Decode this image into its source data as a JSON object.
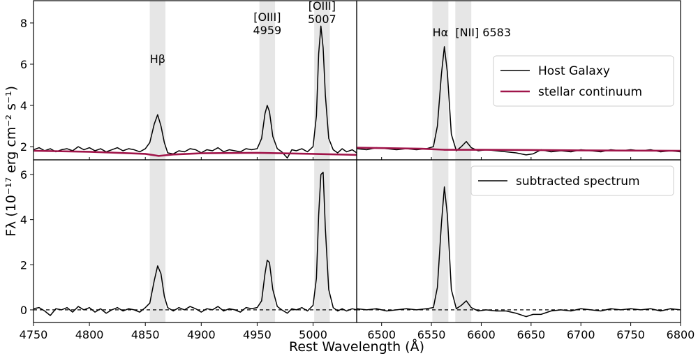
{
  "figure": {
    "xlabel": "Rest Wavelength (Å)",
    "ylabel": "Fλ (10⁻¹⁷ erg cm⁻² s⁻¹)"
  },
  "chart_data": [
    {
      "type": "line",
      "xlim": [
        4750,
        5039
      ],
      "ylim": [
        1.36,
        9.08
      ],
      "yticks": [
        2,
        4,
        6,
        8
      ],
      "bands": [
        {
          "range": [
            4854,
            4868
          ],
          "label": [
            "Hβ"
          ]
        },
        {
          "range": [
            4952,
            4966
          ],
          "label": [
            "[OIII]",
            "4959"
          ]
        },
        {
          "range": [
            5001,
            5015
          ],
          "label": [
            "[OIII]",
            "5007"
          ]
        }
      ],
      "series": [
        {
          "color": "#000000",
          "x": [
            4750,
            4755,
            4760,
            4765,
            4770,
            4775,
            4780,
            4785,
            4790,
            4795,
            4800,
            4805,
            4810,
            4815,
            4820,
            4825,
            4830,
            4835,
            4840,
            4845,
            4850,
            4854,
            4858,
            4861,
            4864,
            4867,
            4870,
            4875,
            4880,
            4885,
            4890,
            4895,
            4900,
            4905,
            4910,
            4915,
            4920,
            4925,
            4930,
            4935,
            4940,
            4945,
            4950,
            4954,
            4957,
            4959,
            4961,
            4964,
            4968,
            4972,
            4977,
            4981,
            4985,
            4990,
            4995,
            5000,
            5003,
            5005,
            5007,
            5009,
            5011,
            5014,
            5018,
            5022,
            5026,
            5030,
            5035,
            5039
          ],
          "values": [
            1.85,
            1.95,
            1.8,
            1.9,
            1.75,
            1.85,
            1.9,
            1.8,
            2.0,
            1.85,
            1.95,
            1.8,
            1.9,
            1.75,
            1.85,
            1.95,
            1.8,
            1.9,
            1.85,
            1.75,
            1.9,
            2.2,
            3.1,
            3.55,
            3.0,
            2.2,
            1.7,
            1.65,
            1.8,
            1.75,
            1.9,
            1.85,
            1.7,
            1.85,
            1.8,
            1.95,
            1.75,
            1.85,
            1.8,
            1.75,
            1.9,
            1.85,
            1.9,
            2.4,
            3.6,
            4.0,
            3.7,
            2.5,
            1.9,
            1.75,
            1.45,
            1.85,
            1.8,
            1.9,
            1.75,
            2.0,
            3.5,
            6.5,
            7.85,
            6.8,
            4.5,
            2.4,
            1.85,
            1.7,
            1.9,
            1.75,
            1.85,
            1.7
          ]
        },
        {
          "color": "#a0154a",
          "x": [
            4750,
            4800,
            4850,
            4862,
            4875,
            4900,
            4950,
            5000,
            5039
          ],
          "values": [
            1.8,
            1.75,
            1.65,
            1.55,
            1.62,
            1.68,
            1.7,
            1.65,
            1.6
          ]
        }
      ]
    },
    {
      "type": "line",
      "xlim": [
        6475,
        6800
      ],
      "ylim": [
        1.36,
        9.08
      ],
      "legend": "upper right",
      "bands": [
        {
          "range": [
            6551,
            6567
          ],
          "label": [
            "Hα"
          ]
        },
        {
          "range": [
            6574,
            6590
          ],
          "label": [
            "[NII] 6583"
          ]
        }
      ],
      "series": [
        {
          "name": "Host Galaxy",
          "color": "#000000",
          "x": [
            6475,
            6485,
            6495,
            6505,
            6515,
            6525,
            6535,
            6545,
            6552,
            6556,
            6560,
            6563,
            6566,
            6570,
            6575,
            6580,
            6585,
            6590,
            6597,
            6605,
            6615,
            6625,
            6635,
            6645,
            6652,
            6660,
            6670,
            6680,
            6690,
            6700,
            6710,
            6720,
            6730,
            6740,
            6750,
            6760,
            6770,
            6780,
            6790,
            6800
          ],
          "values": [
            1.9,
            1.85,
            1.95,
            1.9,
            1.85,
            1.9,
            1.85,
            1.9,
            2.0,
            3.0,
            5.5,
            6.85,
            5.6,
            2.6,
            1.8,
            2.0,
            2.25,
            1.95,
            1.8,
            1.85,
            1.8,
            1.75,
            1.7,
            1.6,
            1.65,
            1.85,
            1.75,
            1.8,
            1.75,
            1.85,
            1.8,
            1.75,
            1.85,
            1.8,
            1.85,
            1.8,
            1.85,
            1.75,
            1.8,
            1.75
          ]
        },
        {
          "name": "stellar continuum",
          "color": "#a0154a",
          "x": [
            6475,
            6540,
            6563,
            6600,
            6700,
            6800
          ],
          "values": [
            1.95,
            1.9,
            1.85,
            1.85,
            1.82,
            1.8
          ]
        }
      ]
    },
    {
      "type": "line",
      "xlim": [
        4750,
        5039
      ],
      "ylim": [
        -0.56,
        6.65
      ],
      "yticks": [
        0,
        2,
        4,
        6
      ],
      "xticks": [
        4750,
        4800,
        4850,
        4900,
        4950,
        5000
      ],
      "hline": 0,
      "bands": [
        {
          "range": [
            4854,
            4868
          ]
        },
        {
          "range": [
            4952,
            4966
          ]
        },
        {
          "range": [
            5001,
            5015
          ]
        }
      ],
      "series": [
        {
          "color": "#000000",
          "x": [
            4750,
            4755,
            4760,
            4765,
            4770,
            4775,
            4780,
            4785,
            4790,
            4795,
            4800,
            4805,
            4810,
            4815,
            4820,
            4825,
            4830,
            4835,
            4840,
            4845,
            4850,
            4854,
            4858,
            4861,
            4864,
            4867,
            4870,
            4875,
            4880,
            4885,
            4890,
            4895,
            4900,
            4905,
            4910,
            4915,
            4920,
            4925,
            4930,
            4935,
            4940,
            4945,
            4950,
            4954,
            4957,
            4959,
            4961,
            4964,
            4968,
            4972,
            4977,
            4981,
            4985,
            4990,
            4995,
            5000,
            5003,
            5005,
            5007,
            5009,
            5011,
            5014,
            5018,
            5022,
            5026,
            5030,
            5035,
            5039
          ],
          "values": [
            0.05,
            0.1,
            -0.05,
            -0.25,
            0.05,
            0.0,
            0.1,
            -0.1,
            0.15,
            0.0,
            0.1,
            -0.1,
            0.05,
            -0.15,
            0.0,
            0.1,
            -0.05,
            0.05,
            0.0,
            -0.1,
            0.1,
            0.3,
            1.3,
            1.95,
            1.6,
            0.6,
            0.1,
            -0.05,
            0.1,
            0.0,
            0.15,
            0.05,
            -0.1,
            0.05,
            0.0,
            0.15,
            -0.05,
            0.05,
            0.0,
            -0.1,
            0.1,
            0.05,
            0.1,
            0.4,
            1.6,
            2.2,
            2.1,
            0.9,
            0.15,
            0.0,
            -0.15,
            0.05,
            0.0,
            0.1,
            -0.05,
            0.2,
            1.4,
            4.2,
            6.0,
            6.1,
            3.6,
            0.9,
            0.1,
            -0.05,
            0.05,
            -0.05,
            0.05,
            0.0
          ]
        }
      ]
    },
    {
      "type": "line",
      "xlim": [
        6475,
        6800
      ],
      "ylim": [
        -0.56,
        6.65
      ],
      "xticks": [
        6500,
        6550,
        6600,
        6650,
        6700,
        6750,
        6800
      ],
      "hline": 0,
      "legend": "upper right",
      "bands": [
        {
          "range": [
            6551,
            6567
          ]
        },
        {
          "range": [
            6574,
            6590
          ]
        }
      ],
      "series": [
        {
          "name": "subtracted spectrum",
          "color": "#000000",
          "x": [
            6475,
            6485,
            6495,
            6505,
            6515,
            6525,
            6535,
            6545,
            6552,
            6556,
            6560,
            6563,
            6566,
            6570,
            6575,
            6580,
            6585,
            6590,
            6597,
            6605,
            6615,
            6625,
            6635,
            6645,
            6652,
            6660,
            6670,
            6680,
            6690,
            6700,
            6710,
            6720,
            6730,
            6740,
            6750,
            6760,
            6770,
            6780,
            6790,
            6800
          ],
          "values": [
            0.05,
            0.0,
            0.05,
            -0.05,
            0.0,
            0.05,
            0.0,
            0.05,
            0.1,
            1.0,
            3.8,
            5.45,
            4.2,
            0.9,
            0.05,
            0.2,
            0.4,
            0.1,
            -0.05,
            0.0,
            -0.05,
            -0.05,
            -0.15,
            -0.3,
            -0.2,
            -0.2,
            -0.05,
            0.0,
            -0.05,
            0.05,
            0.0,
            -0.05,
            0.05,
            0.0,
            0.05,
            0.0,
            0.05,
            -0.05,
            0.05,
            0.0
          ]
        }
      ]
    }
  ]
}
